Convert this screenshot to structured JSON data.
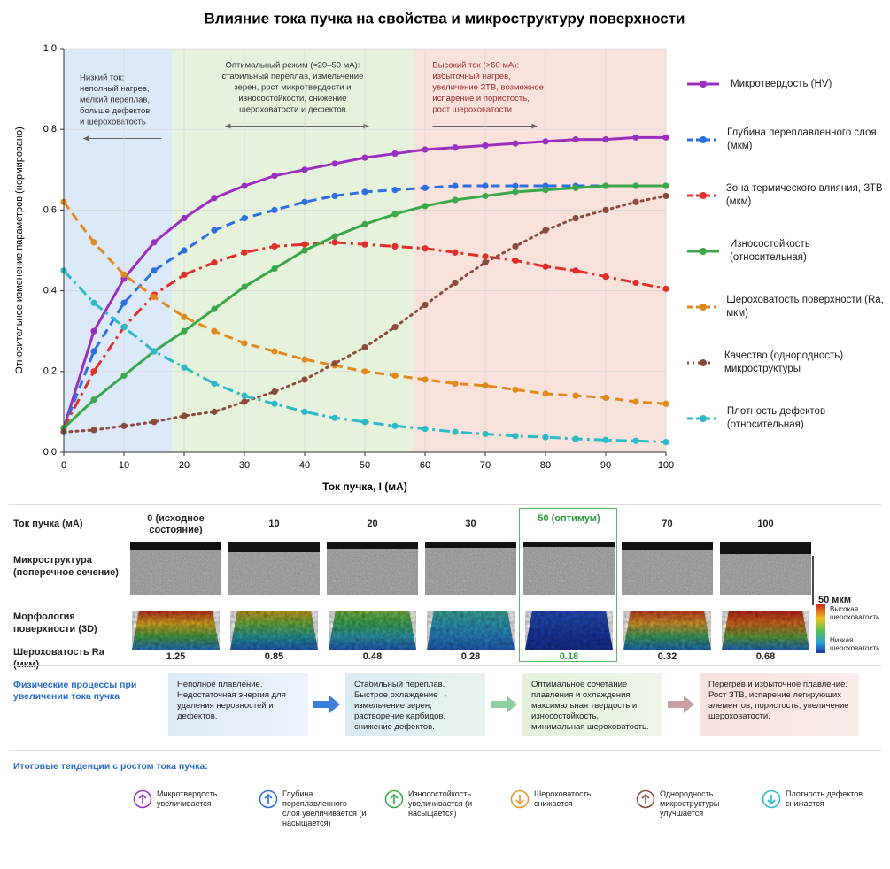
{
  "chart_data": {
    "type": "line",
    "title": "Влияние тока пучка на свойства и микроструктуру поверхности",
    "xlabel": "Ток пучка, I (мА)",
    "ylabel": "Относительное изменение параметров (нормировано)",
    "x": [
      0,
      5,
      10,
      15,
      20,
      25,
      30,
      35,
      40,
      45,
      50,
      55,
      60,
      65,
      70,
      75,
      80,
      85,
      90,
      95,
      100
    ],
    "xlim": [
      0,
      100
    ],
    "ylim": [
      0,
      1
    ],
    "xticks": [
      0,
      10,
      20,
      30,
      40,
      50,
      60,
      70,
      80,
      90,
      100
    ],
    "yticks": [
      {
        "value": 0,
        "label": "0.0"
      },
      {
        "value": 0.2,
        "label": "0.2"
      },
      {
        "value": 0.4,
        "label": "0.4"
      },
      {
        "value": 0.6,
        "label": "0.6"
      },
      {
        "value": 0.8,
        "label": "0.8"
      },
      {
        "value": 1,
        "label": "1.0"
      }
    ],
    "grid": true,
    "legend": "right",
    "regions": [
      {
        "xrange": [
          0,
          18
        ],
        "color": "#dce9f8",
        "lines": [
          "Низкий ток:",
          "неполный нагрев,",
          "мелкий переплав,",
          "больше дефектов",
          "и шероховатость"
        ]
      },
      {
        "xrange": [
          18,
          58
        ],
        "color": "#e6f2dc",
        "lines": [
          "Оптимальный режим (≈20–50 мА):",
          "стабильный переплав, измельчение",
          "зерен, рост микротвердости и",
          "износостойкости, снижение",
          "шероховатости и дефектов"
        ]
      },
      {
        "xrange": [
          58,
          100
        ],
        "color": "#f9e1dc",
        "lines": [
          "Высокий ток (>60 мА):",
          "избыточный нагрев,",
          "увеличение ЗТВ, возможное",
          "испарение и пористость,",
          "рост шероховатости"
        ]
      }
    ],
    "series": [
      {
        "name": "Микротвердость (HV)",
        "color": "#9b30c0",
        "dash": "solid",
        "values": [
          0.06,
          0.3,
          0.43,
          0.52,
          0.58,
          0.63,
          0.66,
          0.685,
          0.7,
          0.715,
          0.73,
          0.74,
          0.75,
          0.755,
          0.76,
          0.765,
          0.77,
          0.775,
          0.775,
          0.78,
          0.78
        ]
      },
      {
        "name": "Глубина переплавленного слоя (мкм)",
        "color": "#2e6fe0",
        "dash": "dashed",
        "values": [
          0.06,
          0.25,
          0.37,
          0.45,
          0.5,
          0.55,
          0.58,
          0.6,
          0.62,
          0.635,
          0.645,
          0.65,
          0.655,
          0.66,
          0.66,
          0.66,
          0.66,
          0.66,
          0.66,
          0.66,
          0.66
        ]
      },
      {
        "name": "Зона термического влияния, ЗТВ (мкм)",
        "color": "#e0302c",
        "dash": "dashdot",
        "values": [
          0.06,
          0.2,
          0.31,
          0.39,
          0.44,
          0.47,
          0.495,
          0.51,
          0.515,
          0.52,
          0.515,
          0.51,
          0.505,
          0.495,
          0.485,
          0.475,
          0.46,
          0.45,
          0.435,
          0.42,
          0.405
        ]
      },
      {
        "name": "Износостойкость (относительная)",
        "color": "#3aa84a",
        "dash": "solid",
        "values": [
          0.06,
          0.13,
          0.19,
          0.25,
          0.3,
          0.355,
          0.41,
          0.455,
          0.5,
          0.535,
          0.565,
          0.59,
          0.61,
          0.625,
          0.635,
          0.645,
          0.65,
          0.655,
          0.66,
          0.66,
          0.66
        ]
      },
      {
        "name": "Шероховатость поверхности (Ra, мкм)",
        "color": "#e08a1e",
        "dash": "dashed",
        "values": [
          0.62,
          0.52,
          0.44,
          0.385,
          0.335,
          0.3,
          0.27,
          0.25,
          0.23,
          0.215,
          0.2,
          0.19,
          0.18,
          0.17,
          0.165,
          0.155,
          0.145,
          0.14,
          0.135,
          0.125,
          0.12
        ]
      },
      {
        "name": "Качество (однородность) микроструктуры",
        "color": "#8a4b3c",
        "dash": "dotted",
        "values": [
          0.05,
          0.055,
          0.065,
          0.075,
          0.09,
          0.1,
          0.125,
          0.15,
          0.18,
          0.22,
          0.26,
          0.31,
          0.365,
          0.42,
          0.47,
          0.51,
          0.55,
          0.58,
          0.6,
          0.62,
          0.635
        ]
      },
      {
        "name": "Плотность дефектов (относительная)",
        "color": "#2bbac6",
        "dash": "dashdot",
        "values": [
          0.45,
          0.37,
          0.31,
          0.25,
          0.21,
          0.17,
          0.14,
          0.12,
          0.1,
          0.085,
          0.075,
          0.065,
          0.058,
          0.05,
          0.045,
          0.04,
          0.037,
          0.033,
          0.03,
          0.028,
          0.025
        ]
      }
    ]
  },
  "samples": {
    "header": "Ток пучка (мА)",
    "row_labels": [
      "Микроструктура (поперечное сечение)",
      "Морфология поверхности (3D)",
      "Шероховатость Ra (мкм)"
    ],
    "scale_bar": "50 мкм",
    "colorbar": {
      "high": "Высокая шероховатость",
      "low": "Низкая шероховатость"
    },
    "columns": [
      {
        "label": "0 (исходное состояние)",
        "ra": 1.25
      },
      {
        "label": "10",
        "ra": 0.85
      },
      {
        "label": "20",
        "ra": 0.48
      },
      {
        "label": "30",
        "ra": 0.28
      },
      {
        "label": "50 (оптимум)",
        "ra": 0.18,
        "highlight": true
      },
      {
        "label": "70",
        "ra": 0.32
      },
      {
        "label": "100",
        "ra": 0.68
      }
    ]
  },
  "processes": {
    "label": "Физические процессы при увеличении тока пучка",
    "steps": [
      "Неполное плавление. Недостаточная энергия для удаления неровностей и дефектов.",
      "Стабильный переплав. Быстрое охлаждение → измельчение зерен, растворение карбидов, снижение дефектов.",
      "Оптимальное сочетание плавления и охлаждения → максимальная твердость и износостойкость, минимальная шероховатость.",
      "Перегрев и избыточное плавление. Рост ЗТВ, испарение легирующих элементов, пористость, увеличение шероховатости."
    ]
  },
  "trends": {
    "title": "Итоговые тенденции с ростом тока пучка:",
    "items": [
      "Микротвердость увеличивается",
      "Глубина переплавленного слоя увеличивается (и насыщается)",
      "Износостойкость увеличивается (и насыщается)",
      "Шероховатость снижается",
      "Однородность микроструктуры улучшается",
      "Плотность дефектов снижается"
    ]
  }
}
